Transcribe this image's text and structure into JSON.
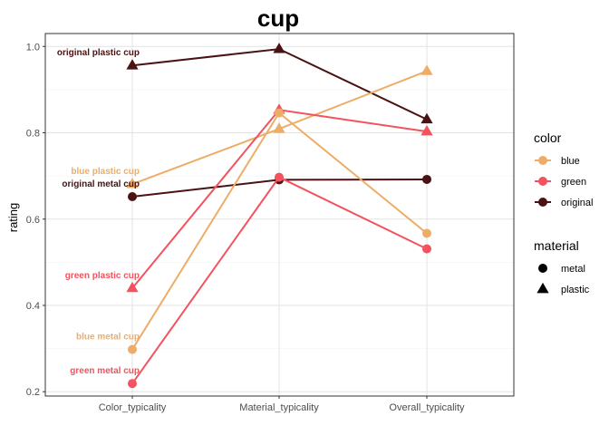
{
  "chart_data": {
    "type": "line",
    "title": "cup",
    "xlabel": "",
    "ylabel": "rating",
    "categories": [
      "Color_typicality",
      "Material_typicality",
      "Overall_typicality"
    ],
    "ylim": [
      0.19,
      1.03
    ],
    "yticks": [
      "0.2",
      "0.4",
      "0.6",
      "0.8",
      "1.0"
    ],
    "ytick_values": [
      0.2,
      0.4,
      0.6,
      0.8,
      1.0
    ],
    "grid": true,
    "colors": {
      "blue": "#EEAD67",
      "green": "#F2535E",
      "original": "#4A1212"
    },
    "series": [
      {
        "color": "original",
        "material": "plastic",
        "values": [
          0.956,
          0.994,
          0.831
        ],
        "label": "original plastic cup"
      },
      {
        "color": "blue",
        "material": "plastic",
        "values": [
          0.681,
          0.809,
          0.943
        ],
        "label": "blue plastic cup"
      },
      {
        "color": "original",
        "material": "metal",
        "values": [
          0.652,
          0.691,
          0.692
        ],
        "label": "original metal cup"
      },
      {
        "color": "green",
        "material": "plastic",
        "values": [
          0.44,
          0.853,
          0.803
        ],
        "label": "green plastic cup"
      },
      {
        "color": "blue",
        "material": "metal",
        "values": [
          0.298,
          0.846,
          0.567
        ],
        "label": "blue metal cup"
      },
      {
        "color": "green",
        "material": "metal",
        "values": [
          0.219,
          0.697,
          0.531
        ],
        "label": "green metal cup"
      }
    ],
    "legend": {
      "placement": "right",
      "color_title": "color",
      "color_items": [
        {
          "key": "blue",
          "label": "blue"
        },
        {
          "key": "green",
          "label": "green"
        },
        {
          "key": "original",
          "label": "original"
        }
      ],
      "material_title": "material",
      "material_items": [
        {
          "key": "metal",
          "label": "metal",
          "shape": "circle"
        },
        {
          "key": "plastic",
          "label": "plastic",
          "shape": "triangle"
        }
      ]
    }
  }
}
